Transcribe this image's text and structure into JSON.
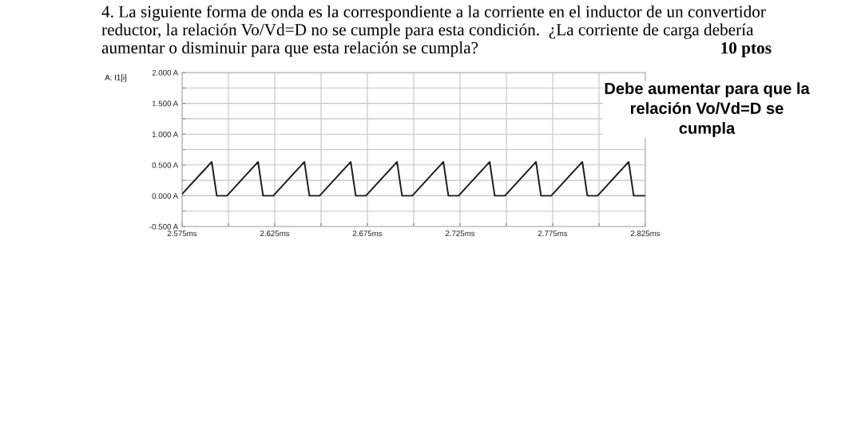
{
  "chart_data": {
    "type": "line",
    "title": "4. La siguiente forma de onda es la correspondiente a la corriente en el inductor de un convertidor\nreductor, la relación Vo/Vd=D no se cumple para esta condición.  ¿La corriente de carga debería\naumentar o disminuir para que esta relación se cumpla?",
    "ylabel": "A: I1[i]",
    "annotations": [
      "10 ptos",
      "Debe aumentar para que la\nrelación Vo/Vd=D se\ncumpla"
    ],
    "x": [
      2.575,
      2.591,
      2.5937,
      2.5992,
      2.616,
      2.6187,
      2.6242,
      2.641,
      2.6437,
      2.6492,
      2.666,
      2.6687,
      2.6742,
      2.691,
      2.6937,
      2.6992,
      2.716,
      2.7187,
      2.7242,
      2.741,
      2.7437,
      2.7492,
      2.766,
      2.7687,
      2.7742,
      2.791,
      2.7937,
      2.7992,
      2.816,
      2.8187,
      2.825
    ],
    "series": [
      {
        "color": "#1a1a1a",
        "values": [
          0.03,
          0.55,
          0,
          0,
          0.55,
          0,
          0,
          0.55,
          0,
          0,
          0.55,
          0,
          0,
          0.55,
          0,
          0,
          0.55,
          0,
          0,
          0.55,
          0,
          0,
          0.55,
          0,
          0,
          0.55,
          0,
          0,
          0.55,
          0,
          0
        ]
      }
    ],
    "xlim": [
      2.575,
      2.825
    ],
    "xticks": [
      {
        "value": 2.575,
        "label": "2.575ms"
      },
      {
        "value": 2.6,
        "label": null
      },
      {
        "value": 2.625,
        "label": "2.625ms"
      },
      {
        "value": 2.65,
        "label": null
      },
      {
        "value": 2.675,
        "label": "2.675ms"
      },
      {
        "value": 2.7,
        "label": null
      },
      {
        "value": 2.725,
        "label": "2.725ms"
      },
      {
        "value": 2.75,
        "label": null
      },
      {
        "value": 2.775,
        "label": "2.775ms"
      },
      {
        "value": 2.8,
        "label": null
      },
      {
        "value": 2.825,
        "label": "2.825ms"
      }
    ],
    "ylim": [
      -0.5,
      2.0
    ],
    "yticks": [
      {
        "value": -0.5,
        "label": "-0.500 A"
      },
      {
        "value": -0.25,
        "label": null
      },
      {
        "value": 0,
        "label": "0.000 A"
      },
      {
        "value": 0.25,
        "label": null
      },
      {
        "value": 0.5,
        "label": "0.500 A"
      },
      {
        "value": 0.75,
        "label": null
      },
      {
        "value": 1.0,
        "label": "1.000 A"
      },
      {
        "value": 1.25,
        "label": null
      },
      {
        "value": 1.5,
        "label": "1.500 A"
      },
      {
        "value": 1.75,
        "label": null
      },
      {
        "value": 2.0,
        "label": "2.000 A"
      }
    ],
    "grid": true,
    "marker": "none",
    "line_style": "solid"
  }
}
